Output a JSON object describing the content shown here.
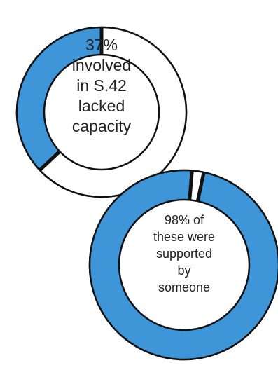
{
  "chart_data": [
    {
      "type": "pie",
      "style": "donut",
      "slices": [
        {
          "label": "lacked capacity",
          "value": 37,
          "color": "#3e95d8"
        },
        {
          "label": "",
          "value": 63,
          "color": "#ffffff"
        }
      ],
      "center_text": [
        "37%",
        "involved",
        "in S.42",
        "lacked",
        "capacity"
      ]
    },
    {
      "type": "pie",
      "style": "donut",
      "slices": [
        {
          "label": "supported by someone",
          "value": 98,
          "color": "#3e95d8"
        },
        {
          "label": "",
          "value": 2,
          "color": "#ffffff"
        }
      ],
      "center_text": [
        "98% of",
        "these were",
        "supported",
        "by",
        "someone"
      ]
    }
  ],
  "colors": {
    "accent": "#3e95d8",
    "outline": "#111111",
    "background": "#ffffff"
  }
}
